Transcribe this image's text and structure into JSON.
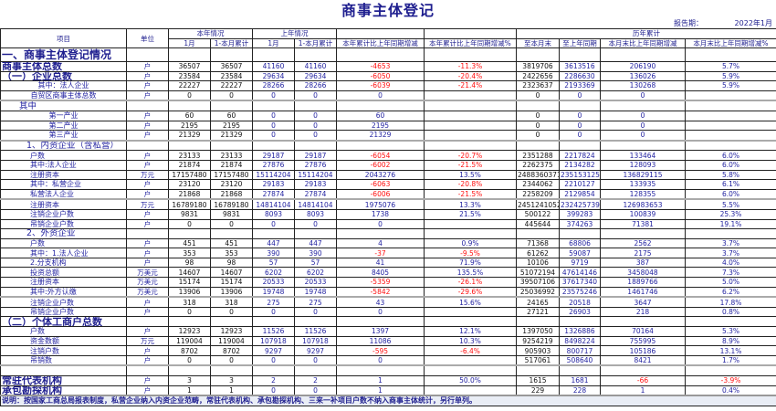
{
  "title": "商事主体登记",
  "report_period_label": "报告期：",
  "report_period": "2022年1月",
  "header": {
    "item": "项目",
    "unit": "单位",
    "this_year": "本年情况",
    "last_year": "上年情况",
    "history": "历年累计",
    "month": "1月",
    "cumulative": "1-本月累计",
    "last_month": "1月",
    "last_cumulative": "1-本月累计",
    "change": "本年累计比上年同期增减",
    "change_pct": "本年累计比上年同期增减%",
    "to_month_end": "至本月末",
    "to_last_year": "至上年同期",
    "month_end_change": "本月末比上年同期增减",
    "month_end_change_pct": "本月末比上年同期增减%"
  },
  "colors": {
    "text": "#1f1f9f",
    "dark": "#111111",
    "negative": "#ff1010",
    "note_bg": "#e9edf5"
  },
  "rows": [
    {
      "label": "一、商事主体登记情况",
      "style": "section",
      "unit": "",
      "values": [
        "",
        "",
        "",
        "",
        "",
        "",
        "",
        "",
        "",
        ""
      ]
    },
    {
      "label": "商事主体总数",
      "style": "heading",
      "unit": "户",
      "values": [
        "36507",
        "36507",
        "41160",
        "41160",
        "-4653",
        "-11.3%",
        "3819706",
        "3613516",
        "206190",
        "5.7%"
      ]
    },
    {
      "label": "（一）企业总数",
      "style": "heading",
      "unit": "户",
      "values": [
        "23584",
        "23584",
        "29634",
        "29634",
        "-6050",
        "-20.4%",
        "2422656",
        "2286630",
        "136026",
        "5.9%"
      ]
    },
    {
      "label": "其中：法人企业",
      "style": "itemc",
      "unit": "户",
      "values": [
        "22227",
        "22227",
        "28266",
        "28266",
        "-6039",
        "-21.4%",
        "2323637",
        "2193369",
        "130268",
        "5.9%"
      ]
    },
    {
      "label": "自贸区商事主体总数",
      "style": "itemc",
      "unit": "户",
      "values": [
        "0",
        "0",
        "0",
        "0",
        "0",
        "",
        "0",
        "0",
        "0",
        ""
      ]
    },
    {
      "label": "其中",
      "style": "group2",
      "unit": "",
      "values": [
        "",
        "",
        "",
        "",
        "",
        "",
        "",
        "",
        "",
        ""
      ]
    },
    {
      "label": "第一产业",
      "style": "itemc",
      "unit": "户",
      "values": [
        "60",
        "60",
        "0",
        "0",
        "60",
        "",
        "0",
        "0",
        "0",
        ""
      ]
    },
    {
      "label": "第二产业",
      "style": "itemc",
      "unit": "户",
      "values": [
        "2195",
        "2195",
        "0",
        "0",
        "2195",
        "",
        "0",
        "0",
        "0",
        ""
      ]
    },
    {
      "label": "第三产业",
      "style": "itemc",
      "unit": "户",
      "values": [
        "21329",
        "21329",
        "0",
        "0",
        "21329",
        "",
        "0",
        "0",
        "0",
        ""
      ]
    },
    {
      "label": "1、内资企业（含私营）",
      "style": "group",
      "unit": "",
      "values": [
        "",
        "",
        "",
        "",
        "",
        "",
        "",
        "",
        "",
        ""
      ]
    },
    {
      "label": "户数",
      "style": "item",
      "unit": "户",
      "values": [
        "23133",
        "23133",
        "29187",
        "29187",
        "-6054",
        "-20.7%",
        "2351288",
        "2217824",
        "133464",
        "6.0%"
      ]
    },
    {
      "label": "其中:法人企业",
      "style": "item",
      "unit": "户",
      "values": [
        "21874",
        "21874",
        "27876",
        "27876",
        "-6002",
        "-21.5%",
        "2262375",
        "2134282",
        "128093",
        "6.0%"
      ]
    },
    {
      "label": "注册资本",
      "style": "item",
      "unit": "万元",
      "values": [
        "17157480",
        "17157480",
        "15114204",
        "15114204",
        "2043276",
        "13.5%",
        "2488360371",
        "2351531256",
        "136829115",
        "5.8%"
      ]
    },
    {
      "label": "其中：私营企业",
      "style": "item",
      "unit": "户",
      "values": [
        "23120",
        "23120",
        "29183",
        "29183",
        "-6063",
        "-20.8%",
        "2344062",
        "2210127",
        "133935",
        "6.1%"
      ]
    },
    {
      "label": "私营法人企业",
      "style": "item",
      "unit": "户",
      "values": [
        "21868",
        "21868",
        "27874",
        "27874",
        "-6006",
        "-21.5%",
        "2258209",
        "2129854",
        "128355",
        "6.0%"
      ]
    },
    {
      "label": "注册资本",
      "style": "item",
      "unit": "万元",
      "values": [
        "16789180",
        "16789180",
        "14814104",
        "14814104",
        "1975076",
        "13.3%",
        "2451241052",
        "2324257399",
        "126983653",
        "5.5%"
      ]
    },
    {
      "label": "注销企业户数",
      "style": "item",
      "unit": "户",
      "values": [
        "9831",
        "9831",
        "8093",
        "8093",
        "1738",
        "21.5%",
        "500122",
        "399283",
        "100839",
        "25.3%"
      ]
    },
    {
      "label": "吊销企业户数",
      "style": "item",
      "unit": "户",
      "values": [
        "0",
        "0",
        "0",
        "0",
        "0",
        "",
        "445644",
        "374263",
        "71381",
        "19.1%"
      ]
    },
    {
      "label": "2、外资企业",
      "style": "group",
      "unit": "",
      "values": [
        "",
        "",
        "",
        "",
        "",
        "",
        "",
        "",
        "",
        ""
      ]
    },
    {
      "label": "户数",
      "style": "item",
      "unit": "户",
      "values": [
        "451",
        "451",
        "447",
        "447",
        "4",
        "0.9%",
        "71368",
        "68806",
        "2562",
        "3.7%"
      ]
    },
    {
      "label": "其中：1.法人企业",
      "style": "item",
      "unit": "户",
      "values": [
        "353",
        "353",
        "390",
        "390",
        "-37",
        "-9.5%",
        "61262",
        "59087",
        "2175",
        "3.7%"
      ]
    },
    {
      "label": "2.分支机构",
      "style": "item",
      "unit": "户",
      "values": [
        "98",
        "98",
        "57",
        "57",
        "41",
        "71.9%",
        "10106",
        "9719",
        "387",
        "4.0%"
      ]
    },
    {
      "label": "投资总额",
      "style": "item",
      "unit": "万美元",
      "values": [
        "14607",
        "14607",
        "6202",
        "6202",
        "8405",
        "135.5%",
        "51072194",
        "47614146",
        "3458048",
        "7.3%"
      ]
    },
    {
      "label": "注册资本",
      "style": "item",
      "unit": "万美元",
      "values": [
        "15174",
        "15174",
        "20533",
        "20533",
        "-5359",
        "-26.1%",
        "39507106",
        "37617340",
        "1889766",
        "5.0%"
      ]
    },
    {
      "label": "其中:外方认缴",
      "style": "item",
      "unit": "万美元",
      "values": [
        "13906",
        "13906",
        "19748",
        "19748",
        "-5842",
        "-29.6%",
        "25036992",
        "23575246",
        "1461746",
        "6.2%"
      ]
    },
    {
      "label": "注销企业户数",
      "style": "item",
      "unit": "户",
      "values": [
        "318",
        "318",
        "275",
        "275",
        "43",
        "15.6%",
        "24165",
        "20518",
        "3647",
        "17.8%"
      ]
    },
    {
      "label": "吊销企业户数",
      "style": "item",
      "unit": "户",
      "values": [
        "0",
        "0",
        "0",
        "0",
        "0",
        "",
        "27121",
        "26903",
        "218",
        "0.8%"
      ]
    },
    {
      "label": "（二）个体工商户总数",
      "style": "heading",
      "unit": "",
      "values": [
        "",
        "",
        "",
        "",
        "",
        "",
        "",
        "",
        "",
        ""
      ]
    },
    {
      "label": "户数",
      "style": "item",
      "unit": "户",
      "values": [
        "12923",
        "12923",
        "11526",
        "11526",
        "1397",
        "12.1%",
        "1397050",
        "1326886",
        "70164",
        "5.3%"
      ]
    },
    {
      "label": "资金数额",
      "style": "item",
      "unit": "万元",
      "values": [
        "119004",
        "119004",
        "107918",
        "107918",
        "11086",
        "10.3%",
        "9254219",
        "8498224",
        "755995",
        "8.9%"
      ]
    },
    {
      "label": "注销户数",
      "style": "item",
      "unit": "户",
      "values": [
        "8702",
        "8702",
        "9297",
        "9297",
        "-595",
        "-6.4%",
        "905903",
        "800717",
        "105186",
        "13.1%"
      ]
    },
    {
      "label": "吊销数",
      "style": "item",
      "unit": "户",
      "values": [
        "0",
        "0",
        "0",
        "0",
        "0",
        "",
        "517061",
        "508640",
        "8421",
        "1.7%"
      ]
    },
    {
      "label": "",
      "style": "blank",
      "unit": "",
      "values": [
        "",
        "",
        "",
        "",
        "",
        "",
        "",
        "",
        "",
        ""
      ]
    },
    {
      "label": "常驻代表机构",
      "style": "heading",
      "unit": "户",
      "values": [
        "3",
        "3",
        "2",
        "2",
        "1",
        "50.0%",
        "1615",
        "1681",
        "-66",
        "-3.9%"
      ]
    },
    {
      "label": "承包勘探机构",
      "style": "heading",
      "unit": "户",
      "values": [
        "1",
        "1",
        "0",
        "0",
        "1",
        "",
        "229",
        "228",
        "1",
        "0.4%"
      ]
    }
  ],
  "note": "说明：按国家工商总局报表制度，私营企业纳入内资企业范畴，常驻代表机构、承包勘探机构、三来一补项目户数不纳入商事主体统计，另行单列。"
}
